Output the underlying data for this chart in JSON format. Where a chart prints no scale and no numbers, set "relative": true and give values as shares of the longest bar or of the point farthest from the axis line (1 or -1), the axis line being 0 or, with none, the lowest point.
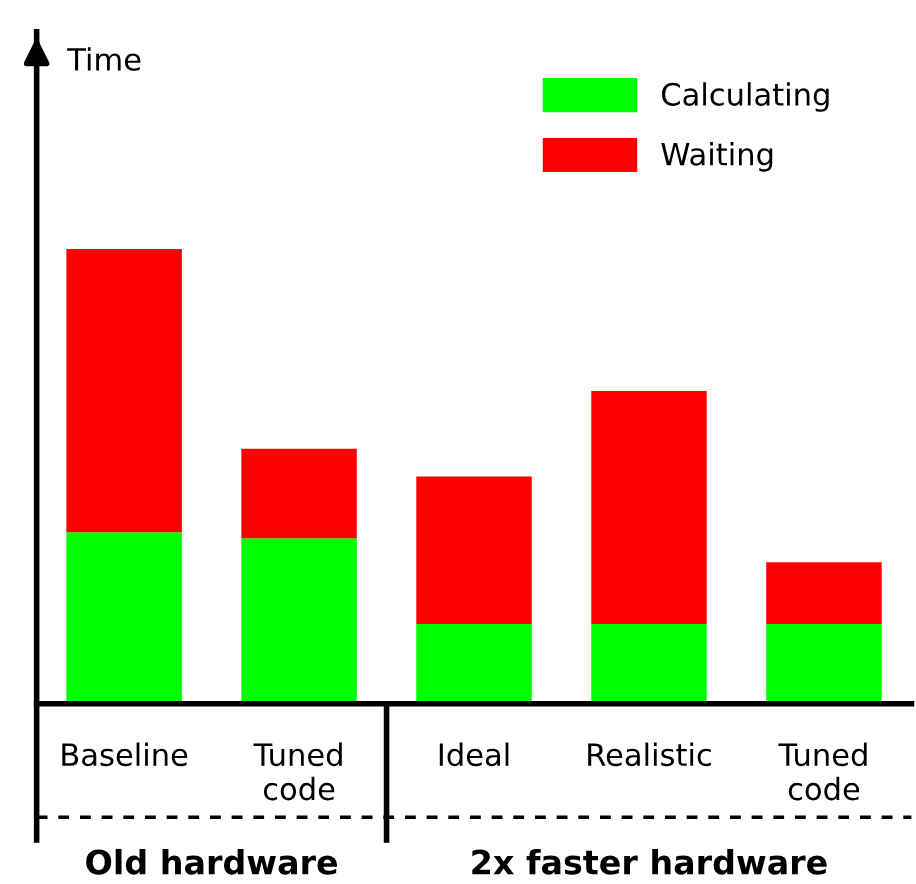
{
  "chart_data": {
    "type": "bar",
    "stacked": true,
    "relative": true,
    "categories": [
      "Baseline",
      "Tuned code",
      "Ideal",
      "Realistic",
      "Tuned code"
    ],
    "series": [
      {
        "name": "Calculating",
        "color": "#00ff00",
        "values": [
          0.377,
          0.364,
          0.175,
          0.175,
          0.175
        ]
      },
      {
        "name": "Waiting",
        "color": "#ff0000",
        "values": [
          0.623,
          0.197,
          0.325,
          0.513,
          0.136
        ]
      }
    ],
    "annotations": [
      "Time",
      "Old hardware",
      "2x faster hardware"
    ],
    "legend": "top right",
    "grid": false
  }
}
